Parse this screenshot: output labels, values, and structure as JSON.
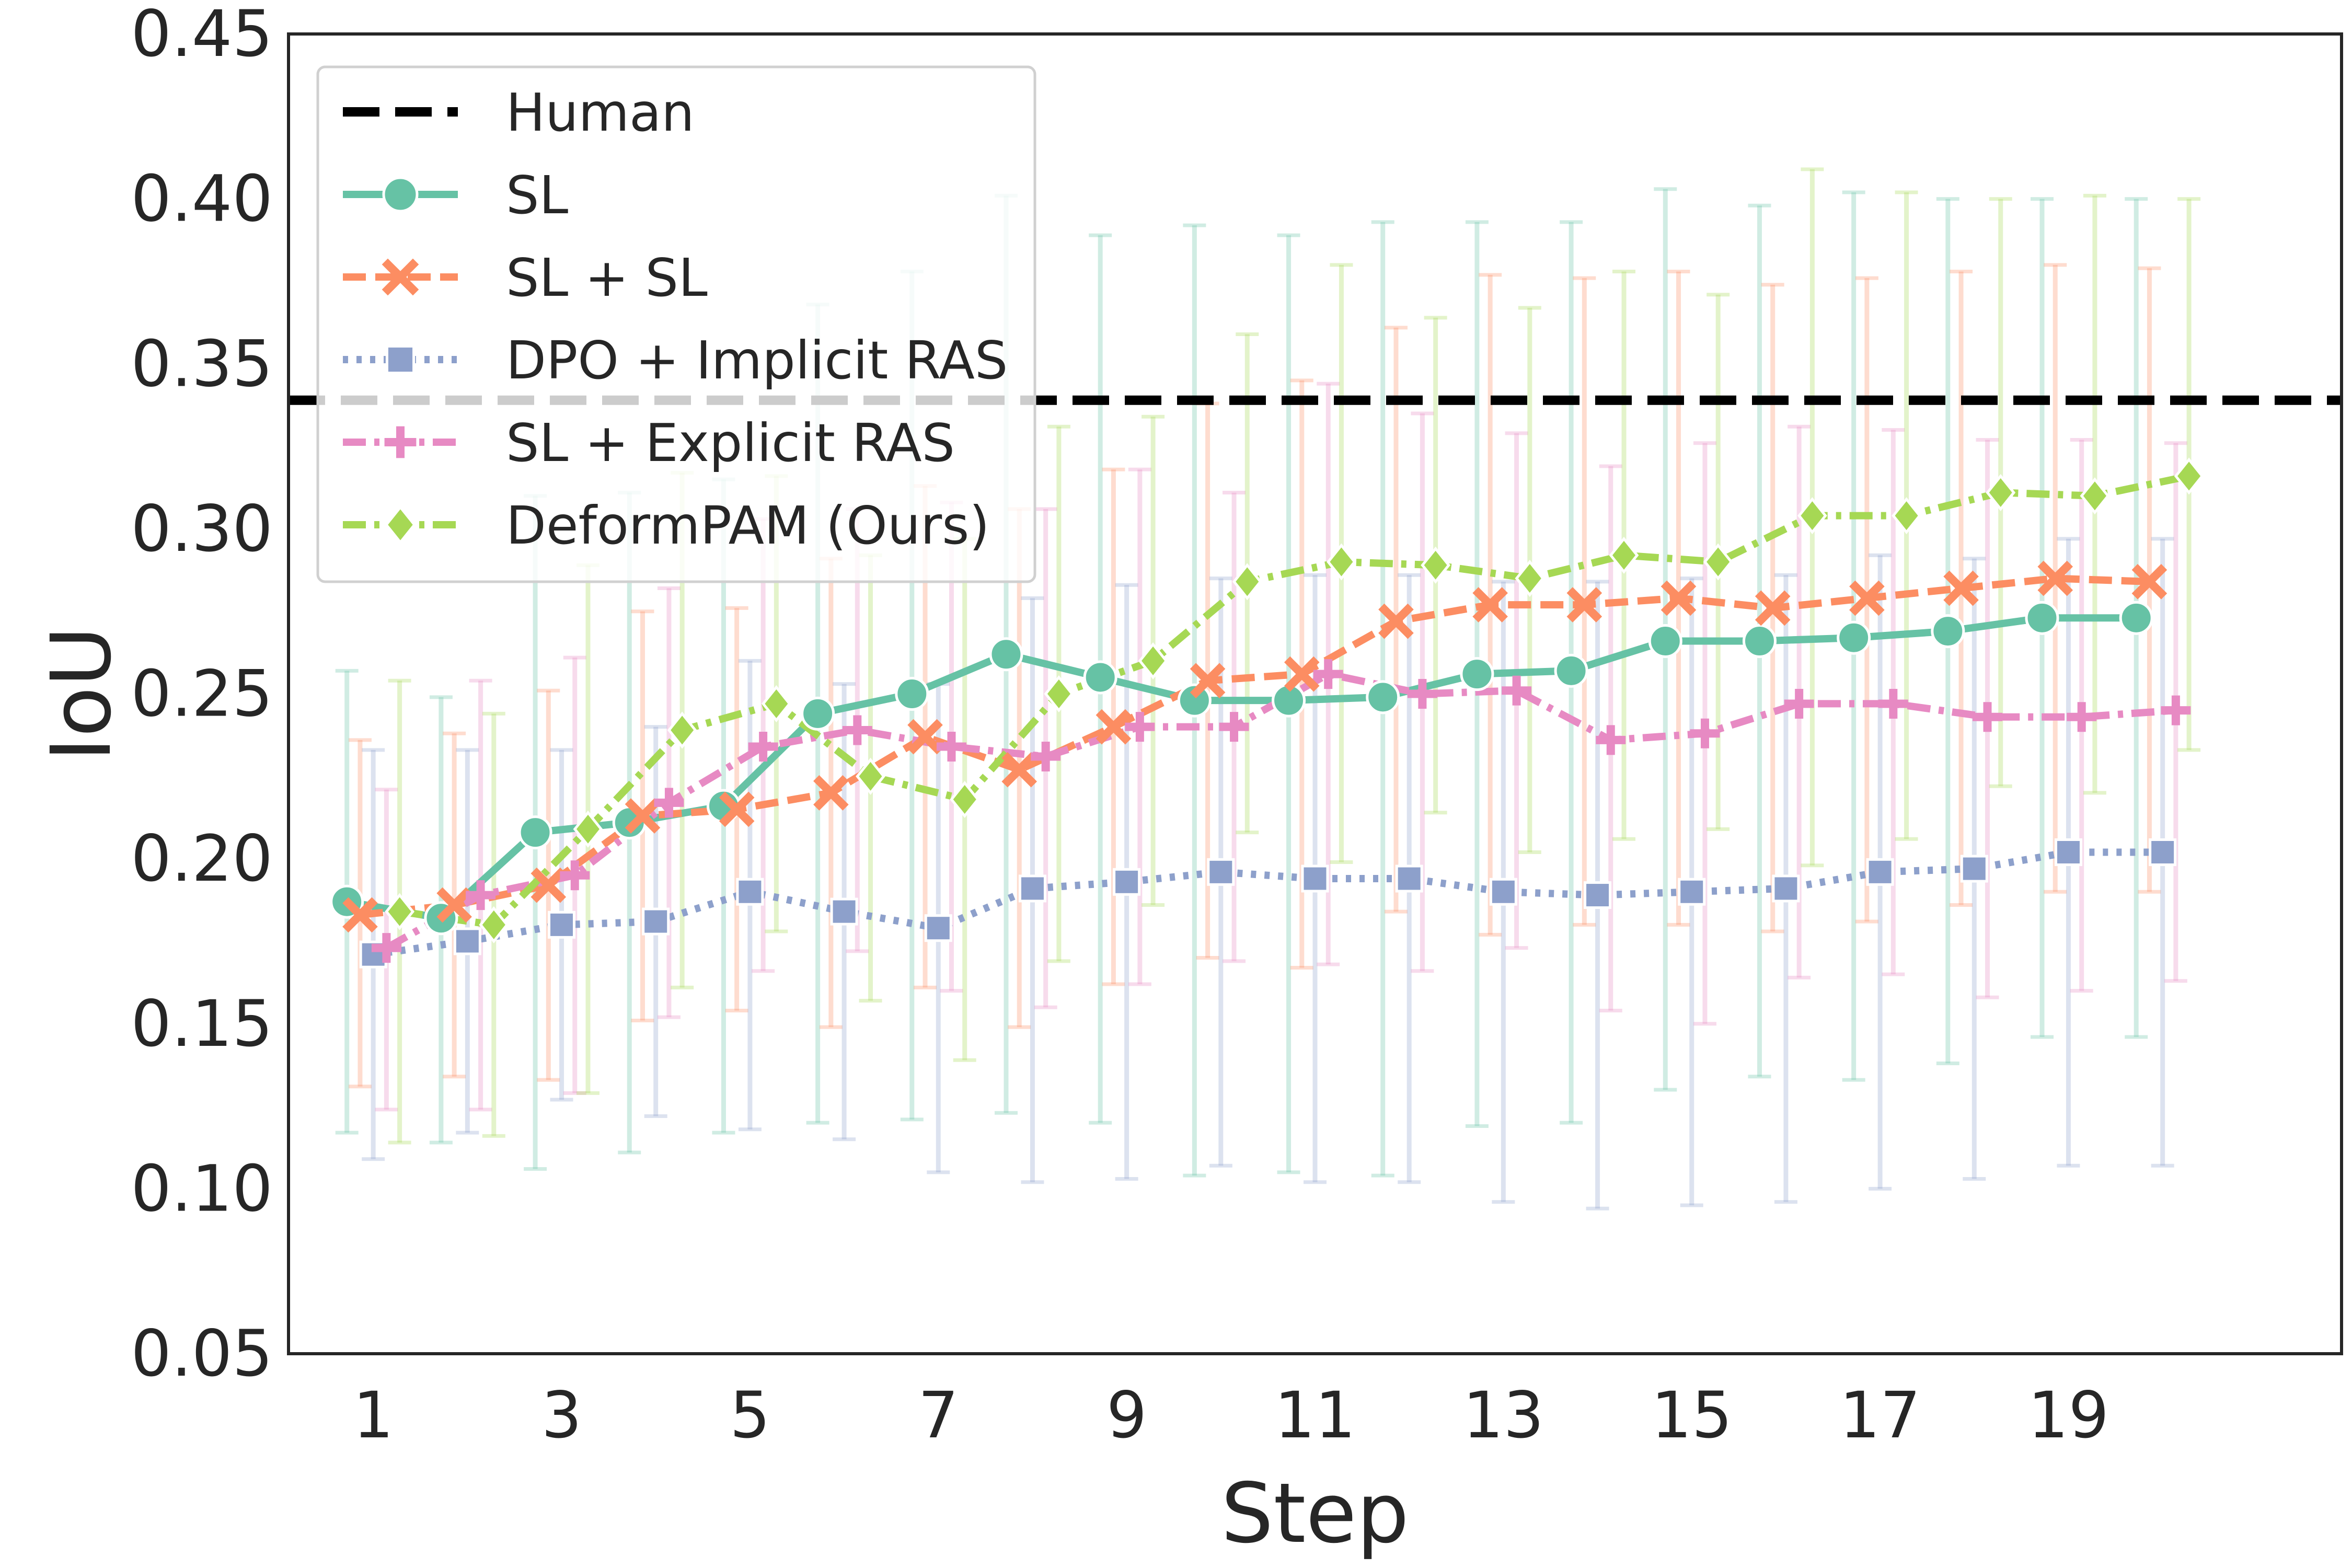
{
  "chart_data": {
    "type": "line",
    "xlabel": "Step",
    "ylabel": "IoU",
    "xlim": [
      0.1,
      21.9
    ],
    "ylim": [
      0.05,
      0.45
    ],
    "xticks": [
      1,
      3,
      5,
      7,
      9,
      11,
      13,
      15,
      17,
      19
    ],
    "xtick_labels": [
      "1",
      "3",
      "5",
      "7",
      "9",
      "11",
      "13",
      "15",
      "17",
      "19"
    ],
    "yticks": [
      0.05,
      0.1,
      0.15,
      0.2,
      0.25,
      0.3,
      0.35,
      0.4,
      0.45
    ],
    "ytick_labels": [
      "0.05",
      "0.10",
      "0.15",
      "0.20",
      "0.25",
      "0.30",
      "0.35",
      "0.40",
      "0.45"
    ],
    "grid": false,
    "legend_position": "top-left",
    "reference_line": {
      "name": "Human",
      "y": 0.339,
      "color": "#000000",
      "style": "dashed"
    },
    "series": [
      {
        "name": "SL",
        "color": "#66c2a5",
        "marker": "circle",
        "style": "solid",
        "x": [
          1,
          2,
          3,
          4,
          5,
          6,
          7,
          8,
          9,
          10,
          11,
          12,
          13,
          14,
          15,
          16,
          17,
          18,
          19,
          20
        ],
        "y": [
          0.187,
          0.182,
          0.208,
          0.211,
          0.216,
          0.244,
          0.25,
          0.262,
          0.255,
          0.248,
          0.248,
          0.249,
          0.256,
          0.257,
          0.266,
          0.266,
          0.267,
          0.269,
          0.273,
          0.273
        ],
        "err_low": [
          0.117,
          0.114,
          0.106,
          0.111,
          0.117,
          0.12,
          0.121,
          0.123,
          0.12,
          0.104,
          0.105,
          0.104,
          0.119,
          0.12,
          0.13,
          0.134,
          0.133,
          0.138,
          0.146,
          0.146
        ],
        "err_high": [
          0.257,
          0.249,
          0.31,
          0.311,
          0.315,
          0.368,
          0.378,
          0.401,
          0.389,
          0.392,
          0.389,
          0.393,
          0.393,
          0.393,
          0.403,
          0.398,
          0.402,
          0.4,
          0.4,
          0.4
        ]
      },
      {
        "name": "SL + SL",
        "color": "#fc8d62",
        "marker": "x",
        "style": "dashed",
        "x": [
          1,
          2,
          3,
          4,
          5,
          6,
          7,
          8,
          9,
          10,
          11,
          12,
          13,
          14,
          15,
          16,
          17,
          18,
          19,
          20
        ],
        "y": [
          0.183,
          0.186,
          0.192,
          0.213,
          0.215,
          0.22,
          0.237,
          0.227,
          0.24,
          0.254,
          0.256,
          0.272,
          0.277,
          0.277,
          0.279,
          0.276,
          0.279,
          0.282,
          0.285,
          0.284
        ],
        "err_low": [
          0.131,
          0.134,
          0.133,
          0.151,
          0.154,
          0.149,
          0.161,
          0.149,
          0.162,
          0.17,
          0.167,
          0.184,
          0.177,
          0.18,
          0.18,
          0.178,
          0.181,
          0.186,
          0.19,
          0.19
        ],
        "err_high": [
          0.236,
          0.238,
          0.251,
          0.275,
          0.276,
          0.291,
          0.313,
          0.306,
          0.318,
          0.338,
          0.345,
          0.361,
          0.377,
          0.376,
          0.378,
          0.374,
          0.376,
          0.378,
          0.38,
          0.379
        ]
      },
      {
        "name": "DPO + Implicit RAS",
        "color": "#8da0cb",
        "marker": "square",
        "style": "dotted",
        "x": [
          1,
          2,
          3,
          4,
          5,
          6,
          7,
          8,
          9,
          10,
          11,
          12,
          13,
          14,
          15,
          16,
          17,
          18,
          19,
          20
        ],
        "y": [
          0.171,
          0.175,
          0.18,
          0.181,
          0.19,
          0.184,
          0.179,
          0.191,
          0.193,
          0.196,
          0.194,
          0.194,
          0.19,
          0.189,
          0.19,
          0.191,
          0.196,
          0.197,
          0.202,
          0.202
        ],
        "err_low": [
          0.109,
          0.117,
          0.127,
          0.122,
          0.118,
          0.115,
          0.105,
          0.102,
          0.103,
          0.107,
          0.102,
          0.102,
          0.096,
          0.094,
          0.095,
          0.096,
          0.1,
          0.103,
          0.107,
          0.107
        ],
        "err_high": [
          0.233,
          0.233,
          0.233,
          0.24,
          0.26,
          0.253,
          0.253,
          0.279,
          0.283,
          0.285,
          0.286,
          0.286,
          0.284,
          0.284,
          0.285,
          0.286,
          0.292,
          0.291,
          0.297,
          0.297
        ]
      },
      {
        "name": "SL + Explicit RAS",
        "color": "#e78ac3",
        "marker": "plus",
        "style": "dashdot",
        "x": [
          1,
          2,
          3,
          4,
          5,
          6,
          7,
          8,
          9,
          10,
          11,
          12,
          13,
          14,
          15,
          16,
          17,
          18,
          19,
          20
        ],
        "y": [
          0.173,
          0.189,
          0.195,
          0.217,
          0.234,
          0.239,
          0.234,
          0.231,
          0.24,
          0.24,
          0.256,
          0.25,
          0.251,
          0.236,
          0.238,
          0.247,
          0.247,
          0.243,
          0.243,
          0.245
        ],
        "err_low": [
          0.124,
          0.124,
          0.129,
          0.152,
          0.166,
          0.172,
          0.16,
          0.155,
          0.162,
          0.169,
          0.168,
          0.166,
          0.173,
          0.154,
          0.15,
          0.164,
          0.165,
          0.158,
          0.16,
          0.163
        ],
        "err_high": [
          0.221,
          0.254,
          0.261,
          0.282,
          0.303,
          0.306,
          0.308,
          0.306,
          0.318,
          0.311,
          0.344,
          0.335,
          0.329,
          0.319,
          0.326,
          0.331,
          0.33,
          0.327,
          0.327,
          0.326
        ]
      },
      {
        "name": "DeformPAM (Ours)",
        "color": "#a6d854",
        "marker": "diamond",
        "style": "dashdot",
        "x": [
          1,
          2,
          3,
          4,
          5,
          6,
          7,
          8,
          9,
          10,
          11,
          12,
          13,
          14,
          15,
          16,
          17,
          18,
          19,
          20
        ],
        "y": [
          0.184,
          0.18,
          0.209,
          0.239,
          0.247,
          0.225,
          0.218,
          0.25,
          0.26,
          0.284,
          0.29,
          0.289,
          0.285,
          0.292,
          0.29,
          0.304,
          0.304,
          0.311,
          0.31,
          0.316
        ],
        "err_low": [
          0.114,
          0.116,
          0.129,
          0.161,
          0.178,
          0.157,
          0.139,
          0.169,
          0.186,
          0.208,
          0.199,
          0.214,
          0.202,
          0.206,
          0.209,
          0.198,
          0.206,
          0.222,
          0.22,
          0.233
        ],
        "err_high": [
          0.254,
          0.244,
          0.289,
          0.317,
          0.316,
          0.292,
          0.297,
          0.331,
          0.334,
          0.359,
          0.38,
          0.364,
          0.367,
          0.378,
          0.371,
          0.409,
          0.402,
          0.4,
          0.401,
          0.4
        ]
      }
    ]
  }
}
